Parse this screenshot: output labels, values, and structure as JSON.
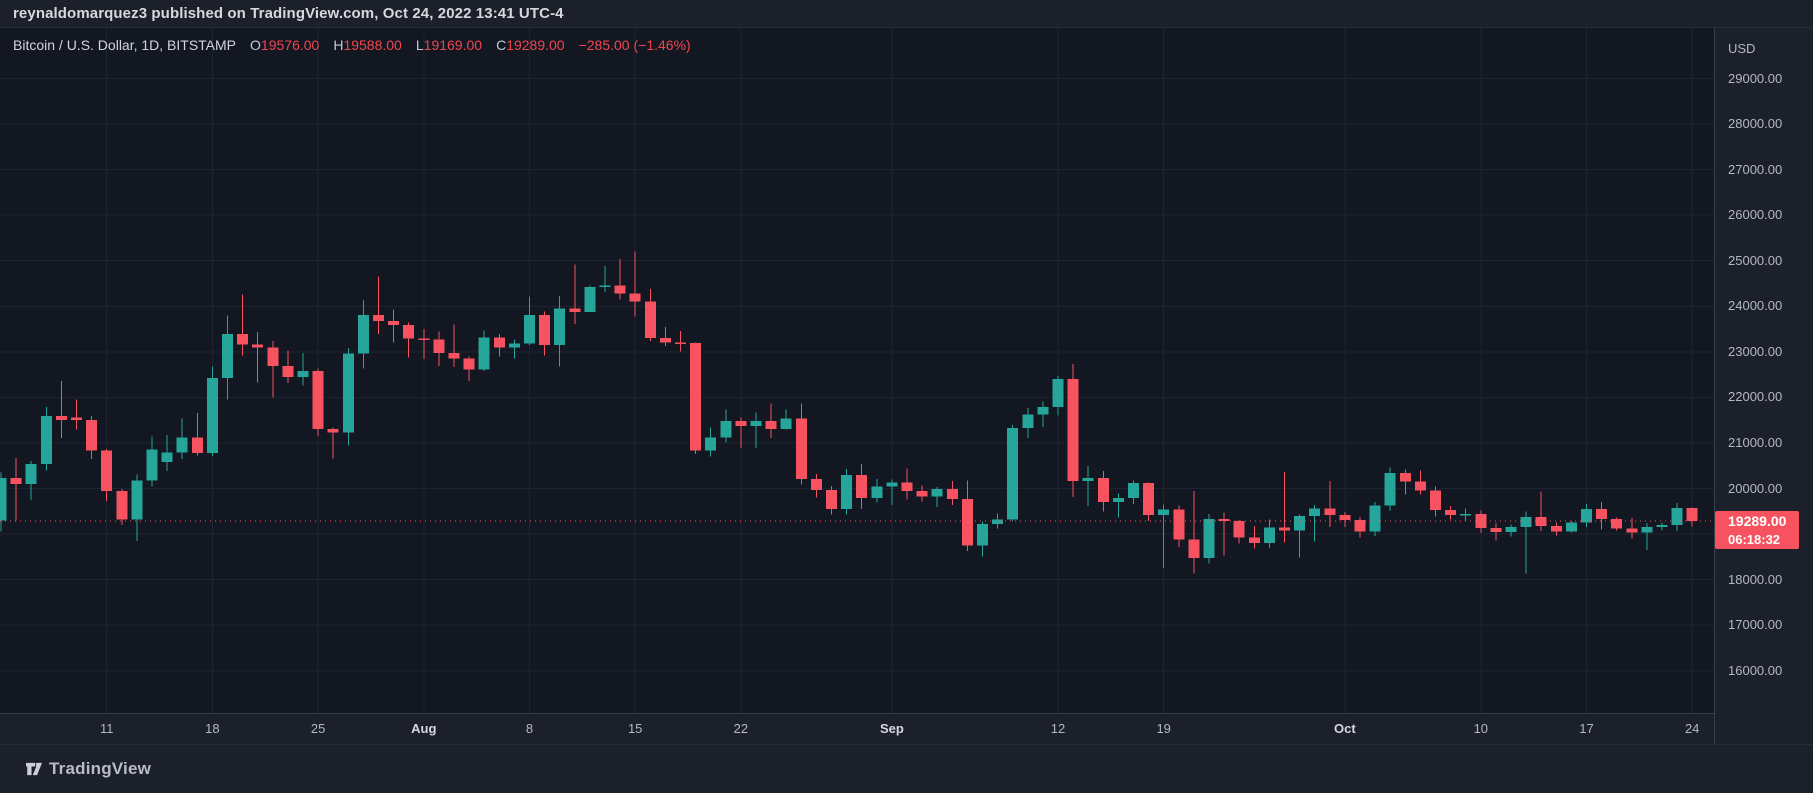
{
  "attribution": {
    "text": "reynaldomarquez3 published on TradingView.com, Oct 24, 2022 13:41 UTC-4"
  },
  "legend": {
    "symbol_title": "Bitcoin / U.S. Dollar, 1D, BITSTAMP",
    "o_label": "O",
    "o_value": "19576.00",
    "h_label": "H",
    "h_value": "19588.00",
    "l_label": "L",
    "l_value": "19169.00",
    "c_label": "C",
    "c_value": "19289.00",
    "change": "−285.00 (−1.46%)"
  },
  "price_axis": {
    "currency_label": "USD",
    "labels": [
      "29000.00",
      "28000.00",
      "27000.00",
      "26000.00",
      "25000.00",
      "24000.00",
      "23000.00",
      "22000.00",
      "21000.00",
      "20000.00",
      "19000.00",
      "18000.00",
      "17000.00",
      "16000.00"
    ],
    "last_price_label": "19289.00",
    "countdown": "06:18:32"
  },
  "time_axis": {
    "ticks": [
      {
        "label": "11",
        "index": 7,
        "bold": false
      },
      {
        "label": "18",
        "index": 14,
        "bold": false
      },
      {
        "label": "25",
        "index": 21,
        "bold": false
      },
      {
        "label": "Aug",
        "index": 28,
        "bold": true
      },
      {
        "label": "8",
        "index": 35,
        "bold": false
      },
      {
        "label": "15",
        "index": 42,
        "bold": false
      },
      {
        "label": "22",
        "index": 49,
        "bold": false
      },
      {
        "label": "Sep",
        "index": 59,
        "bold": true
      },
      {
        "label": "12",
        "index": 70,
        "bold": false
      },
      {
        "label": "19",
        "index": 77,
        "bold": false
      },
      {
        "label": "Oct",
        "index": 89,
        "bold": true
      },
      {
        "label": "10",
        "index": 98,
        "bold": false
      },
      {
        "label": "17",
        "index": 105,
        "bold": false
      },
      {
        "label": "24",
        "index": 112,
        "bold": false
      }
    ]
  },
  "footer": {
    "brand": "TradingView"
  },
  "colors": {
    "up": "#26a69a",
    "down": "#f7525f",
    "accent_red": "#f7525f",
    "chart_bg": "#131722",
    "panel_bg": "#1c202b",
    "grid": "#1d2332",
    "axis_text": "#b4b8c1"
  },
  "chart_data": {
    "type": "candlestick",
    "title": "Bitcoin / U.S. Dollar",
    "symbol": "BTCUSD",
    "exchange": "BITSTAMP",
    "interval": "1D",
    "currency": "USD",
    "last_price": 19289.0,
    "change": -285.0,
    "change_pct": -1.46,
    "grid": true,
    "visible_price_range": [
      15100,
      30100
    ],
    "price_tick_step": 1000,
    "x_range": [
      "Jul 4 2022",
      "Oct 24 2022"
    ],
    "candles_format": [
      "date",
      "open",
      "high",
      "low",
      "close"
    ],
    "candles": [
      [
        "Jul 4",
        19300,
        20350,
        19060,
        20230
      ],
      [
        "Jul 5",
        20230,
        20670,
        19300,
        20100
      ],
      [
        "Jul 6",
        20100,
        20600,
        19750,
        20540
      ],
      [
        "Jul 7",
        20540,
        21790,
        20400,
        21590
      ],
      [
        "Jul 8",
        21590,
        22360,
        21110,
        21500
      ],
      [
        "Jul 9",
        21560,
        21950,
        21300,
        21500
      ],
      [
        "Jul 10",
        21500,
        21590,
        20650,
        20840
      ],
      [
        "Jul 11",
        20840,
        20870,
        19730,
        19950
      ],
      [
        "Jul 12",
        19950,
        19990,
        19200,
        19320
      ],
      [
        "Jul 13",
        19320,
        20310,
        18850,
        20180
      ],
      [
        "Jul 14",
        20180,
        21140,
        20050,
        20860
      ],
      [
        "Jul 15",
        20580,
        21170,
        20390,
        20790
      ],
      [
        "Jul 16",
        20790,
        21540,
        20650,
        21120
      ],
      [
        "Jul 17",
        21120,
        21660,
        20720,
        20780
      ],
      [
        "Jul 18",
        20780,
        22680,
        20710,
        22430
      ],
      [
        "Jul 19",
        22430,
        23800,
        21950,
        23390
      ],
      [
        "Jul 20",
        23390,
        24260,
        22920,
        23160
      ],
      [
        "Jul 21",
        23160,
        23440,
        22330,
        23100
      ],
      [
        "Jul 22",
        23100,
        23240,
        22000,
        22690
      ],
      [
        "Jul 23",
        22690,
        23030,
        22320,
        22450
      ],
      [
        "Jul 24",
        22450,
        22980,
        22260,
        22580
      ],
      [
        "Jul 25",
        22580,
        22640,
        21150,
        21310
      ],
      [
        "Jul 26",
        21310,
        21340,
        20660,
        21230
      ],
      [
        "Jul 27",
        21230,
        23080,
        20950,
        22960
      ],
      [
        "Jul 28",
        22960,
        24140,
        22640,
        23810
      ],
      [
        "Jul 29",
        23810,
        24650,
        23390,
        23680
      ],
      [
        "Jul 30",
        23680,
        23930,
        23200,
        23590
      ],
      [
        "Jul 31",
        23590,
        23640,
        22880,
        23290
      ],
      [
        "Aug 1",
        23290,
        23500,
        22840,
        23270
      ],
      [
        "Aug 2",
        23270,
        23450,
        22690,
        22980
      ],
      [
        "Aug 3",
        22980,
        23600,
        22670,
        22850
      ],
      [
        "Aug 4",
        22850,
        22900,
        22360,
        22610
      ],
      [
        "Aug 5",
        22610,
        23470,
        22580,
        23310
      ],
      [
        "Aug 6",
        23310,
        23390,
        22900,
        23100
      ],
      [
        "Aug 7",
        23100,
        23270,
        22850,
        23180
      ],
      [
        "Aug 8",
        23180,
        24210,
        23150,
        23810
      ],
      [
        "Aug 9",
        23810,
        23890,
        22920,
        23150
      ],
      [
        "Aug 10",
        23150,
        24230,
        22680,
        23950
      ],
      [
        "Aug 11",
        23950,
        24920,
        23610,
        23880
      ],
      [
        "Aug 12",
        23880,
        24460,
        23870,
        24420
      ],
      [
        "Aug 13",
        24420,
        24890,
        24310,
        24460
      ],
      [
        "Aug 14",
        24460,
        25040,
        24150,
        24280
      ],
      [
        "Aug 15",
        24280,
        25200,
        23780,
        24100
      ],
      [
        "Aug 16",
        24100,
        24380,
        23240,
        23300
      ],
      [
        "Aug 17",
        23300,
        23550,
        23130,
        23210
      ],
      [
        "Aug 18",
        23210,
        23460,
        23010,
        23190
      ],
      [
        "Aug 19",
        23190,
        23200,
        20760,
        20830
      ],
      [
        "Aug 20",
        20830,
        21340,
        20700,
        21120
      ],
      [
        "Aug 21",
        21120,
        21740,
        21010,
        21480
      ],
      [
        "Aug 22",
        21480,
        21560,
        20890,
        21370
      ],
      [
        "Aug 23",
        21370,
        21670,
        20890,
        21480
      ],
      [
        "Aug 24",
        21480,
        21870,
        21110,
        21310
      ],
      [
        "Aug 25",
        21310,
        21740,
        21300,
        21540
      ],
      [
        "Aug 26",
        21540,
        21870,
        20090,
        20210
      ],
      [
        "Aug 27",
        20210,
        20320,
        19800,
        19970
      ],
      [
        "Aug 28",
        19970,
        20060,
        19430,
        19550
      ],
      [
        "Aug 29",
        19550,
        20430,
        19430,
        20300
      ],
      [
        "Aug 30",
        20300,
        20540,
        19550,
        19790
      ],
      [
        "Aug 31",
        19790,
        20210,
        19690,
        20040
      ],
      [
        "Sep 1",
        20040,
        20200,
        19640,
        20130
      ],
      [
        "Sep 2",
        20130,
        20440,
        19760,
        19950
      ],
      [
        "Sep 3",
        19950,
        20070,
        19720,
        19830
      ],
      [
        "Sep 4",
        19830,
        20030,
        19590,
        19990
      ],
      [
        "Sep 5",
        19990,
        20170,
        19640,
        19770
      ],
      [
        "Sep 6",
        19770,
        20180,
        18630,
        18750
      ],
      [
        "Sep 7",
        18750,
        19280,
        18510,
        19220
      ],
      [
        "Sep 8",
        19220,
        19450,
        19120,
        19320
      ],
      [
        "Sep 9",
        19320,
        21400,
        19290,
        21330
      ],
      [
        "Sep 10",
        21330,
        21770,
        21110,
        21630
      ],
      [
        "Sep 11",
        21630,
        21910,
        21350,
        21790
      ],
      [
        "Sep 12",
        21790,
        22470,
        21600,
        22400
      ],
      [
        "Sep 13",
        22400,
        22730,
        19810,
        20170
      ],
      [
        "Sep 14",
        20170,
        20490,
        19620,
        20230
      ],
      [
        "Sep 15",
        20230,
        20390,
        19500,
        19700
      ],
      [
        "Sep 16",
        19700,
        19890,
        19360,
        19790
      ],
      [
        "Sep 17",
        19790,
        20180,
        19660,
        20120
      ],
      [
        "Sep 18",
        20120,
        20130,
        19290,
        19420
      ],
      [
        "Sep 19",
        19420,
        19650,
        18260,
        19540
      ],
      [
        "Sep 20",
        19540,
        19630,
        18720,
        18880
      ],
      [
        "Sep 21",
        18880,
        19950,
        18130,
        18470
      ],
      [
        "Sep 22",
        18470,
        19440,
        18360,
        19330
      ],
      [
        "Sep 23",
        19330,
        19470,
        18530,
        19290
      ],
      [
        "Sep 24",
        19290,
        19310,
        18790,
        18920
      ],
      [
        "Sep 25",
        18920,
        19180,
        18680,
        18800
      ],
      [
        "Sep 26",
        18800,
        19320,
        18700,
        19150
      ],
      [
        "Sep 27",
        19150,
        20360,
        18820,
        19080
      ],
      [
        "Sep 28",
        19080,
        19430,
        18490,
        19400
      ],
      [
        "Sep 29",
        19400,
        19640,
        18840,
        19560
      ],
      [
        "Sep 30",
        19560,
        20170,
        19160,
        19420
      ],
      [
        "Oct 1",
        19420,
        19480,
        19160,
        19310
      ],
      [
        "Oct 2",
        19310,
        19380,
        18920,
        19060
      ],
      [
        "Oct 3",
        19060,
        19710,
        18960,
        19630
      ],
      [
        "Oct 4",
        19630,
        20460,
        19510,
        20340
      ],
      [
        "Oct 5",
        20340,
        20420,
        19870,
        20160
      ],
      [
        "Oct 6",
        20160,
        20400,
        19870,
        19960
      ],
      [
        "Oct 7",
        19960,
        20040,
        19390,
        19530
      ],
      [
        "Oct 8",
        19530,
        19620,
        19320,
        19420
      ],
      [
        "Oct 9",
        19420,
        19560,
        19290,
        19440
      ],
      [
        "Oct 10",
        19440,
        19520,
        19020,
        19130
      ],
      [
        "Oct 11",
        19130,
        19240,
        18860,
        19050
      ],
      [
        "Oct 12",
        19050,
        19210,
        18950,
        19160
      ],
      [
        "Oct 13",
        19160,
        19500,
        18130,
        19380
      ],
      [
        "Oct 14",
        19380,
        19940,
        19070,
        19180
      ],
      [
        "Oct 15",
        19180,
        19250,
        18970,
        19060
      ],
      [
        "Oct 16",
        19060,
        19290,
        19030,
        19260
      ],
      [
        "Oct 17",
        19260,
        19660,
        19160,
        19550
      ],
      [
        "Oct 18",
        19550,
        19700,
        19100,
        19330
      ],
      [
        "Oct 19",
        19330,
        19360,
        19080,
        19120
      ],
      [
        "Oct 20",
        19120,
        19350,
        18900,
        19040
      ],
      [
        "Oct 21",
        19040,
        19240,
        18650,
        19160
      ],
      [
        "Oct 22",
        19160,
        19260,
        19080,
        19200
      ],
      [
        "Oct 23",
        19200,
        19680,
        19070,
        19574
      ],
      [
        "Oct 24",
        19576,
        19588,
        19169,
        19289
      ]
    ]
  }
}
